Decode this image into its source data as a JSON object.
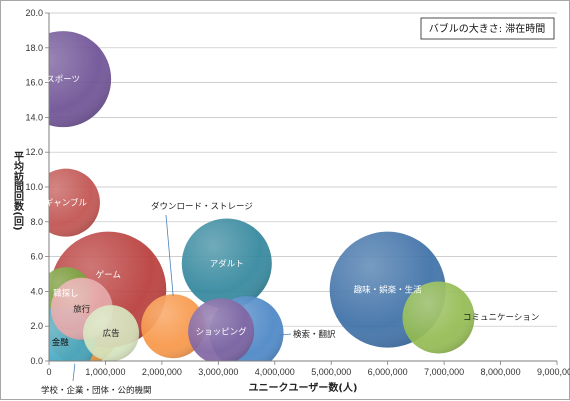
{
  "chart_data": {
    "type": "bubble",
    "title": "",
    "legend": {
      "text": "バブルの大きさ: 滞在時間",
      "position": "top-right"
    },
    "xlabel": "ユニークユーザー数(人)",
    "ylabel": "平均訪問回数(回)",
    "xlim": [
      0,
      9000000
    ],
    "ylim": [
      0,
      20
    ],
    "xticks": [
      0,
      1000000,
      2000000,
      3000000,
      4000000,
      5000000,
      6000000,
      7000000,
      8000000,
      9000000
    ],
    "xtick_labels": [
      "0",
      "1,000,000",
      "2,000,000",
      "3,000,000",
      "4,000,000",
      "5,000,000",
      "6,000,000",
      "7,000,000",
      "8,000,000",
      "9,000,000"
    ],
    "yticks": [
      0,
      2,
      4,
      6,
      8,
      10,
      12,
      14,
      16,
      18,
      20
    ],
    "ytick_labels": [
      "0.0",
      "2.0",
      "4.0",
      "6.0",
      "8.0",
      "10.0",
      "12.0",
      "14.0",
      "16.0",
      "18.0",
      "20.0"
    ],
    "grid": true,
    "series": [
      {
        "name": "学校・企業・団体・公的機関",
        "x": 600000,
        "y": 1.8,
        "size": 36,
        "color": "#e8923a",
        "label_color": "#222222"
      },
      {
        "name": "スポーツ",
        "x": 250000,
        "y": 16.2,
        "size": 48,
        "color": "#6d4f94",
        "label_color": "#ffffff"
      },
      {
        "name": "ギャンブル",
        "x": 300000,
        "y": 9.1,
        "size": 34,
        "color": "#c0504d",
        "label_color": "#ffffff"
      },
      {
        "name": "ゲーム",
        "x": 1050000,
        "y": 4.1,
        "size": 58,
        "color": "#b73b38",
        "label_color": "#ffffff"
      },
      {
        "name": "職探し",
        "x": 300000,
        "y": 3.9,
        "size": 26,
        "color": "#77a33c",
        "label_color": "#ffffff"
      },
      {
        "name": "金融",
        "x": 200000,
        "y": 1.1,
        "size": 35,
        "color": "#3fa6c2",
        "label_color": "#111111"
      },
      {
        "name": "旅行",
        "x": 580000,
        "y": 3.0,
        "size": 31,
        "color": "#e6a9aa",
        "label_color": "#222222"
      },
      {
        "name": "広告",
        "x": 1100000,
        "y": 1.6,
        "size": 28,
        "color": "#d6e4bd",
        "label_color": "#222222"
      },
      {
        "name": "ダウンロード・ストレージ",
        "x": 2200000,
        "y": 2.0,
        "size": 32,
        "color": "#f79646",
        "label_color": "#222222"
      },
      {
        "name": "アダルト",
        "x": 3150000,
        "y": 5.6,
        "size": 45,
        "color": "#31859c",
        "label_color": "#ffffff"
      },
      {
        "name": "検索・翻訳",
        "x": 3500000,
        "y": 1.6,
        "size": 37,
        "color": "#4a86c6",
        "label_color": "#111111"
      },
      {
        "name": "ショッピング",
        "x": 3050000,
        "y": 1.7,
        "size": 33,
        "color": "#8064a2",
        "label_color": "#ffffff"
      },
      {
        "name": "趣味・娯楽・生活",
        "x": 6000000,
        "y": 4.1,
        "size": 58,
        "color": "#3c6fa6",
        "label_color": "#ffffff"
      },
      {
        "name": "コミュニケーション",
        "x": 6900000,
        "y": 2.5,
        "size": 36,
        "color": "#92bb50",
        "label_color": "#222222"
      }
    ]
  }
}
